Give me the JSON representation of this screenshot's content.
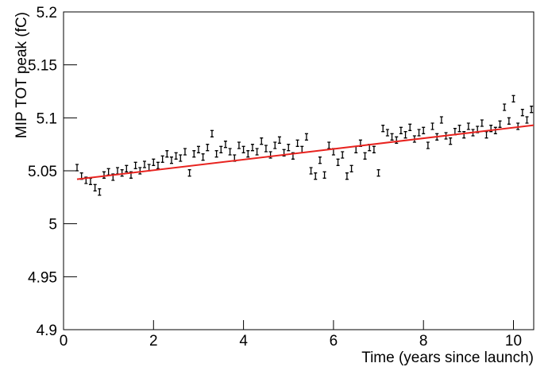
{
  "chart_data": {
    "type": "scatter",
    "xlabel": "Time (years since launch)",
    "ylabel": "MIP TOT peak (fC)",
    "xlim": [
      0,
      10.45
    ],
    "xticks": [
      0,
      2,
      4,
      6,
      8,
      10
    ],
    "ylim": [
      4.9,
      5.2
    ],
    "yticks": [
      4.9,
      4.95,
      5,
      5.05,
      5.1,
      5.15,
      5.2
    ],
    "series": [
      {
        "color": "#000000",
        "x": [
          0.3,
          0.4,
          0.5,
          0.6,
          0.7,
          0.8,
          0.9,
          1.0,
          1.1,
          1.2,
          1.3,
          1.4,
          1.5,
          1.6,
          1.7,
          1.8,
          1.9,
          2.0,
          2.1,
          2.2,
          2.3,
          2.4,
          2.5,
          2.6,
          2.7,
          2.8,
          2.9,
          3.0,
          3.1,
          3.2,
          3.3,
          3.4,
          3.5,
          3.6,
          3.7,
          3.8,
          3.9,
          4.0,
          4.1,
          4.2,
          4.3,
          4.4,
          4.5,
          4.6,
          4.7,
          4.8,
          4.9,
          5.0,
          5.1,
          5.2,
          5.3,
          5.4,
          5.5,
          5.6,
          5.7,
          5.8,
          5.9,
          6.0,
          6.1,
          6.2,
          6.3,
          6.4,
          6.5,
          6.6,
          6.7,
          6.8,
          6.9,
          7.0,
          7.1,
          7.2,
          7.3,
          7.4,
          7.5,
          7.6,
          7.7,
          7.8,
          7.9,
          8.0,
          8.1,
          8.2,
          8.3,
          8.4,
          8.5,
          8.6,
          8.7,
          8.8,
          8.9,
          9.0,
          9.1,
          9.2,
          9.3,
          9.4,
          9.5,
          9.6,
          9.7,
          9.8,
          9.9,
          10.0,
          10.1,
          10.2,
          10.3,
          10.4
        ],
        "values": [
          5.053,
          5.045,
          5.041,
          5.04,
          5.034,
          5.03,
          5.046,
          5.049,
          5.044,
          5.05,
          5.048,
          5.052,
          5.046,
          5.055,
          5.05,
          5.056,
          5.053,
          5.058,
          5.055,
          5.061,
          5.066,
          5.06,
          5.064,
          5.062,
          5.068,
          5.048,
          5.066,
          5.07,
          5.063,
          5.072,
          5.085,
          5.066,
          5.07,
          5.075,
          5.068,
          5.062,
          5.074,
          5.07,
          5.066,
          5.072,
          5.068,
          5.078,
          5.071,
          5.065,
          5.074,
          5.079,
          5.067,
          5.072,
          5.064,
          5.076,
          5.07,
          5.082,
          5.05,
          5.045,
          5.06,
          5.046,
          5.074,
          5.068,
          5.058,
          5.065,
          5.045,
          5.052,
          5.07,
          5.076,
          5.064,
          5.072,
          5.07,
          5.048,
          5.09,
          5.086,
          5.082,
          5.079,
          5.088,
          5.084,
          5.091,
          5.08,
          5.086,
          5.088,
          5.074,
          5.092,
          5.082,
          5.098,
          5.083,
          5.078,
          5.087,
          5.09,
          5.084,
          5.092,
          5.086,
          5.089,
          5.095,
          5.084,
          5.09,
          5.088,
          5.094,
          5.11,
          5.097,
          5.118,
          5.092,
          5.105,
          5.098,
          5.108
        ],
        "errors": [
          0.003,
          0.003,
          0.003,
          0.003,
          0.003,
          0.003,
          0.003,
          0.003,
          0.003,
          0.003,
          0.003,
          0.003,
          0.003,
          0.003,
          0.003,
          0.003,
          0.003,
          0.003,
          0.003,
          0.003,
          0.003,
          0.003,
          0.003,
          0.003,
          0.003,
          0.003,
          0.003,
          0.003,
          0.003,
          0.003,
          0.003,
          0.003,
          0.003,
          0.003,
          0.003,
          0.003,
          0.003,
          0.003,
          0.003,
          0.003,
          0.003,
          0.003,
          0.003,
          0.003,
          0.003,
          0.003,
          0.003,
          0.003,
          0.003,
          0.003,
          0.003,
          0.003,
          0.003,
          0.003,
          0.003,
          0.003,
          0.003,
          0.003,
          0.003,
          0.003,
          0.003,
          0.003,
          0.003,
          0.003,
          0.003,
          0.003,
          0.003,
          0.003,
          0.003,
          0.003,
          0.003,
          0.003,
          0.003,
          0.003,
          0.003,
          0.003,
          0.003,
          0.003,
          0.003,
          0.003,
          0.003,
          0.003,
          0.003,
          0.003,
          0.003,
          0.003,
          0.003,
          0.003,
          0.003,
          0.003,
          0.003,
          0.003,
          0.003,
          0.003,
          0.003,
          0.003,
          0.003,
          0.003,
          0.003,
          0.003,
          0.003,
          0.003
        ]
      },
      {
        "color": "#e8231f",
        "x": [
          0.3,
          10.45
        ],
        "values": [
          5.042,
          5.093
        ]
      }
    ]
  }
}
